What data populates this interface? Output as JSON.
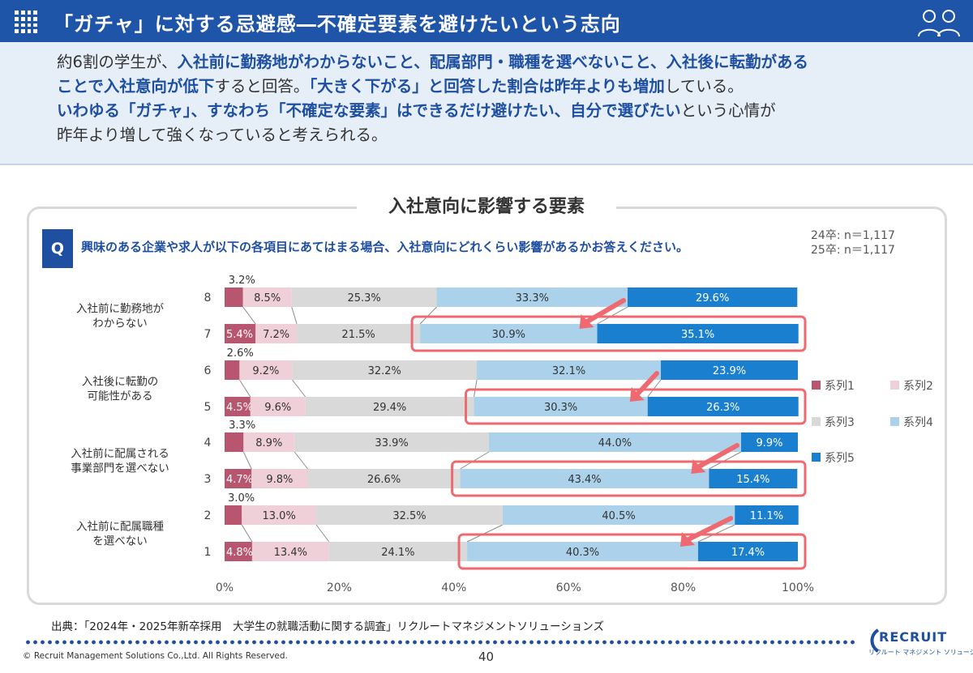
{
  "header": {
    "title": "「ガチャ」に対する忌避感―不確定要素を避けたいという志向"
  },
  "summary": {
    "lines": [
      [
        {
          "t": "約6割の学生が、",
          "b": false
        },
        {
          "t": "入社前に勤務地がわからないこと、配属部門・職種を選べないこと、入社後に転勤がある",
          "b": true
        }
      ],
      [
        {
          "t": "ことで入社意向が低下",
          "b": true
        },
        {
          "t": "すると回答。",
          "b": false
        },
        {
          "t": "「大きく下がる」と回答した割合は昨年よりも増加",
          "b": true
        },
        {
          "t": "している。",
          "b": false
        }
      ],
      [
        {
          "t": "いわゆる「ガチャ」、すなわち「不確定な要素」はできるだけ避けたい、自分で選びたい",
          "b": true
        },
        {
          "t": "という心情が",
          "b": false
        }
      ],
      [
        {
          "t": "昨年より増して強くなっていると考えられる。",
          "b": false
        }
      ]
    ]
  },
  "panel": {
    "title": "入社意向に影響する要素",
    "q_label": "Q",
    "question": "興味のある企業や求人が以下の各項目にあてはまる場合、入社意向にどれくらい影響があるかお答えください。",
    "sample": [
      "24卒: n＝1,117",
      "25卒: n＝1,117"
    ]
  },
  "chart_data": {
    "type": "bar",
    "orientation": "horizontal",
    "stacked": "percent",
    "categories": [
      "8",
      "7",
      "6",
      "5",
      "4",
      "3",
      "2",
      "1"
    ],
    "group_labels": [
      [
        "入社前に勤務地が",
        "わからない"
      ],
      [
        "入社後に転勤の",
        "可能性がある"
      ],
      [
        "入社前に配属される",
        "事業部門を選べない"
      ],
      [
        "入社前に配属職種",
        "を選べない"
      ]
    ],
    "series": [
      {
        "name": "系列1",
        "color": "#b9566f",
        "values": [
          3.2,
          5.4,
          2.6,
          4.5,
          3.3,
          4.7,
          3.0,
          4.8
        ]
      },
      {
        "name": "系列2",
        "color": "#efcfd8",
        "values": [
          8.5,
          7.2,
          9.2,
          9.6,
          8.9,
          9.8,
          13.0,
          13.4
        ]
      },
      {
        "name": "系列3",
        "color": "#d9d9d9",
        "values": [
          25.3,
          21.5,
          32.2,
          29.4,
          33.9,
          26.6,
          32.5,
          24.1
        ]
      },
      {
        "name": "系列4",
        "color": "#abd2ea",
        "values": [
          33.3,
          30.9,
          32.1,
          30.3,
          44.0,
          43.4,
          40.5,
          40.3
        ]
      },
      {
        "name": "系列5",
        "color": "#1a7fcf",
        "values": [
          29.6,
          35.1,
          23.9,
          26.3,
          9.9,
          15.4,
          11.1,
          17.4
        ]
      }
    ],
    "xlim": [
      0,
      100
    ],
    "x_ticks": [
      "0%",
      "20%",
      "40%",
      "60%",
      "80%",
      "100%"
    ],
    "highlighted_rows": [
      "7",
      "5",
      "3",
      "1"
    ],
    "legend_position": "right"
  },
  "footer": {
    "source": "出典：「2024年・2025年新卒採用　大学生の就職活動に関する調査」リクルートマネジメントソリューションズ",
    "copyright": "© Recruit Management Solutions Co.,Ltd. All Rights Reserved.",
    "page": "40",
    "logo_word": "RECRUIT",
    "logo_sub": "リクルート マネジメント ソリューションズ"
  }
}
